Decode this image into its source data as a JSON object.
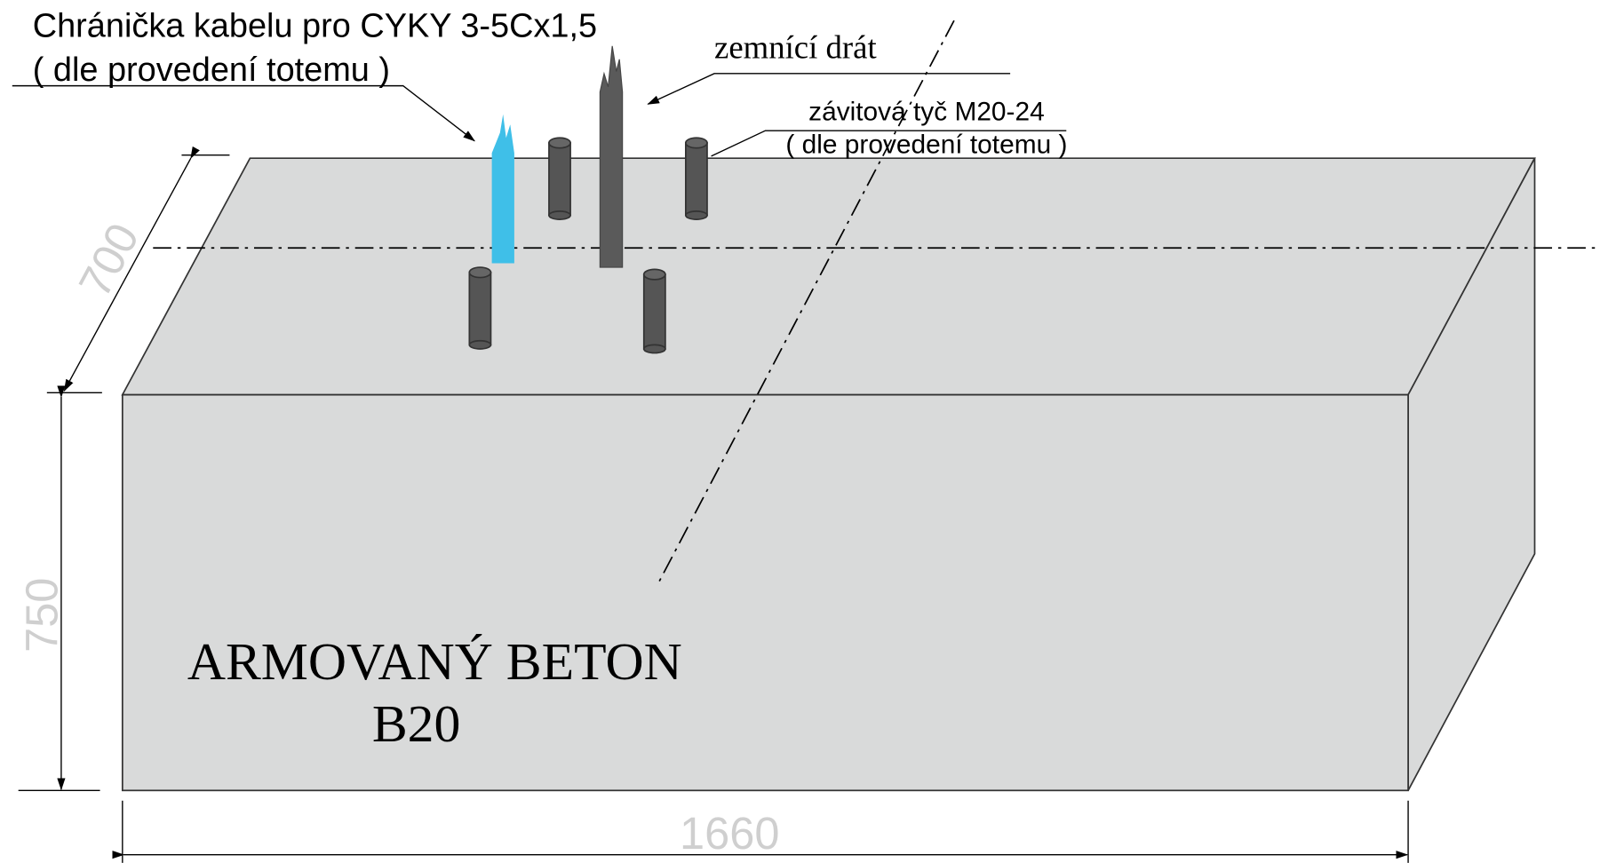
{
  "labels": {
    "cable_sleeve": [
      "Chránička kabelu pro CYKY 3-5Cx1,5",
      "( dle provedení totemu )"
    ],
    "ground_wire": "zemnící drát",
    "threaded_rod": [
      "závitová tyč M20-24",
      "( dle provedení totemu )"
    ],
    "material": [
      "ARMOVANÝ BETON",
      "B20"
    ]
  },
  "dimensions": {
    "depth": 700,
    "height": 750,
    "width": 1660
  }
}
